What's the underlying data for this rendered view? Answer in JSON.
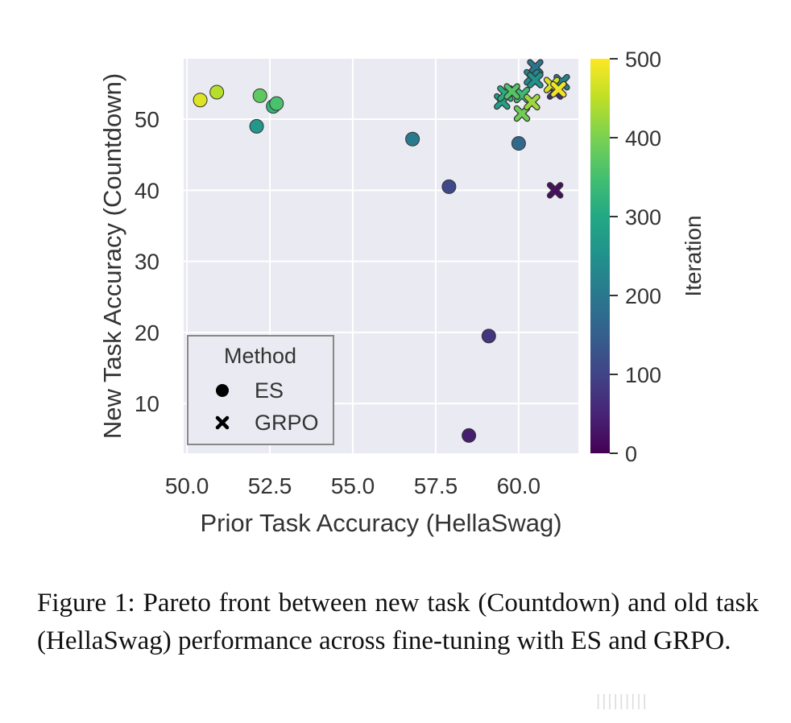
{
  "chart_data": {
    "type": "scatter",
    "xlabel": "Prior Task Accuracy (HellaSwag)",
    "ylabel": "New Task Accuracy (Countdown)",
    "xlim": [
      49.9,
      61.8
    ],
    "ylim": [
      3,
      58.5
    ],
    "xticks": [
      50.0,
      52.5,
      55.0,
      57.5,
      60.0
    ],
    "xtick_labels": [
      "50.0",
      "52.5",
      "55.0",
      "57.5",
      "60.0"
    ],
    "yticks": [
      10,
      20,
      30,
      40,
      50
    ],
    "ytick_labels": [
      "10",
      "20",
      "30",
      "40",
      "50"
    ],
    "grid": true,
    "legend": {
      "title": "Method",
      "placement": "lower-left",
      "entries": [
        {
          "label": "ES",
          "marker": "circle"
        },
        {
          "label": "GRPO",
          "marker": "x"
        }
      ]
    },
    "colorbar": {
      "label": "Iteration",
      "min": 0,
      "max": 500,
      "ticks": [
        0,
        100,
        200,
        300,
        400,
        500
      ],
      "tick_labels": [
        "0",
        "100",
        "200",
        "300",
        "400",
        "500"
      ],
      "colormap": "viridis"
    },
    "series": [
      {
        "name": "ES",
        "marker": "circle",
        "points": [
          {
            "x": 58.5,
            "y": 5.5,
            "iteration": 40
          },
          {
            "x": 59.1,
            "y": 19.5,
            "iteration": 75
          },
          {
            "x": 57.9,
            "y": 40.5,
            "iteration": 110
          },
          {
            "x": 60.0,
            "y": 46.6,
            "iteration": 170
          },
          {
            "x": 56.8,
            "y": 47.2,
            "iteration": 205
          },
          {
            "x": 52.1,
            "y": 49.0,
            "iteration": 265
          },
          {
            "x": 52.6,
            "y": 51.8,
            "iteration": 325
          },
          {
            "x": 52.7,
            "y": 52.2,
            "iteration": 355
          },
          {
            "x": 52.2,
            "y": 53.3,
            "iteration": 375
          },
          {
            "x": 50.9,
            "y": 53.8,
            "iteration": 445
          },
          {
            "x": 50.4,
            "y": 52.7,
            "iteration": 475
          }
        ]
      },
      {
        "name": "GRPO",
        "marker": "x",
        "points": [
          {
            "x": 61.1,
            "y": 40.0,
            "iteration": 20
          },
          {
            "x": 61.1,
            "y": 53.9,
            "iteration": 60
          },
          {
            "x": 60.5,
            "y": 57.3,
            "iteration": 190
          },
          {
            "x": 61.3,
            "y": 55.2,
            "iteration": 215
          },
          {
            "x": 60.4,
            "y": 55.9,
            "iteration": 230
          },
          {
            "x": 60.5,
            "y": 55.5,
            "iteration": 250
          },
          {
            "x": 59.5,
            "y": 52.5,
            "iteration": 280
          },
          {
            "x": 59.6,
            "y": 53.6,
            "iteration": 310
          },
          {
            "x": 60.1,
            "y": 53.4,
            "iteration": 340
          },
          {
            "x": 59.8,
            "y": 53.9,
            "iteration": 365
          },
          {
            "x": 60.1,
            "y": 50.8,
            "iteration": 390
          },
          {
            "x": 60.4,
            "y": 52.4,
            "iteration": 425
          },
          {
            "x": 61.0,
            "y": 54.8,
            "iteration": 470
          },
          {
            "x": 61.2,
            "y": 54.2,
            "iteration": 490
          }
        ]
      }
    ]
  },
  "caption": "Figure 1: Pareto front between new task (Countdown) and old task (HellaSwag) performance across fine-tuning with ES and GRPO.",
  "watermark": "|||||||||"
}
